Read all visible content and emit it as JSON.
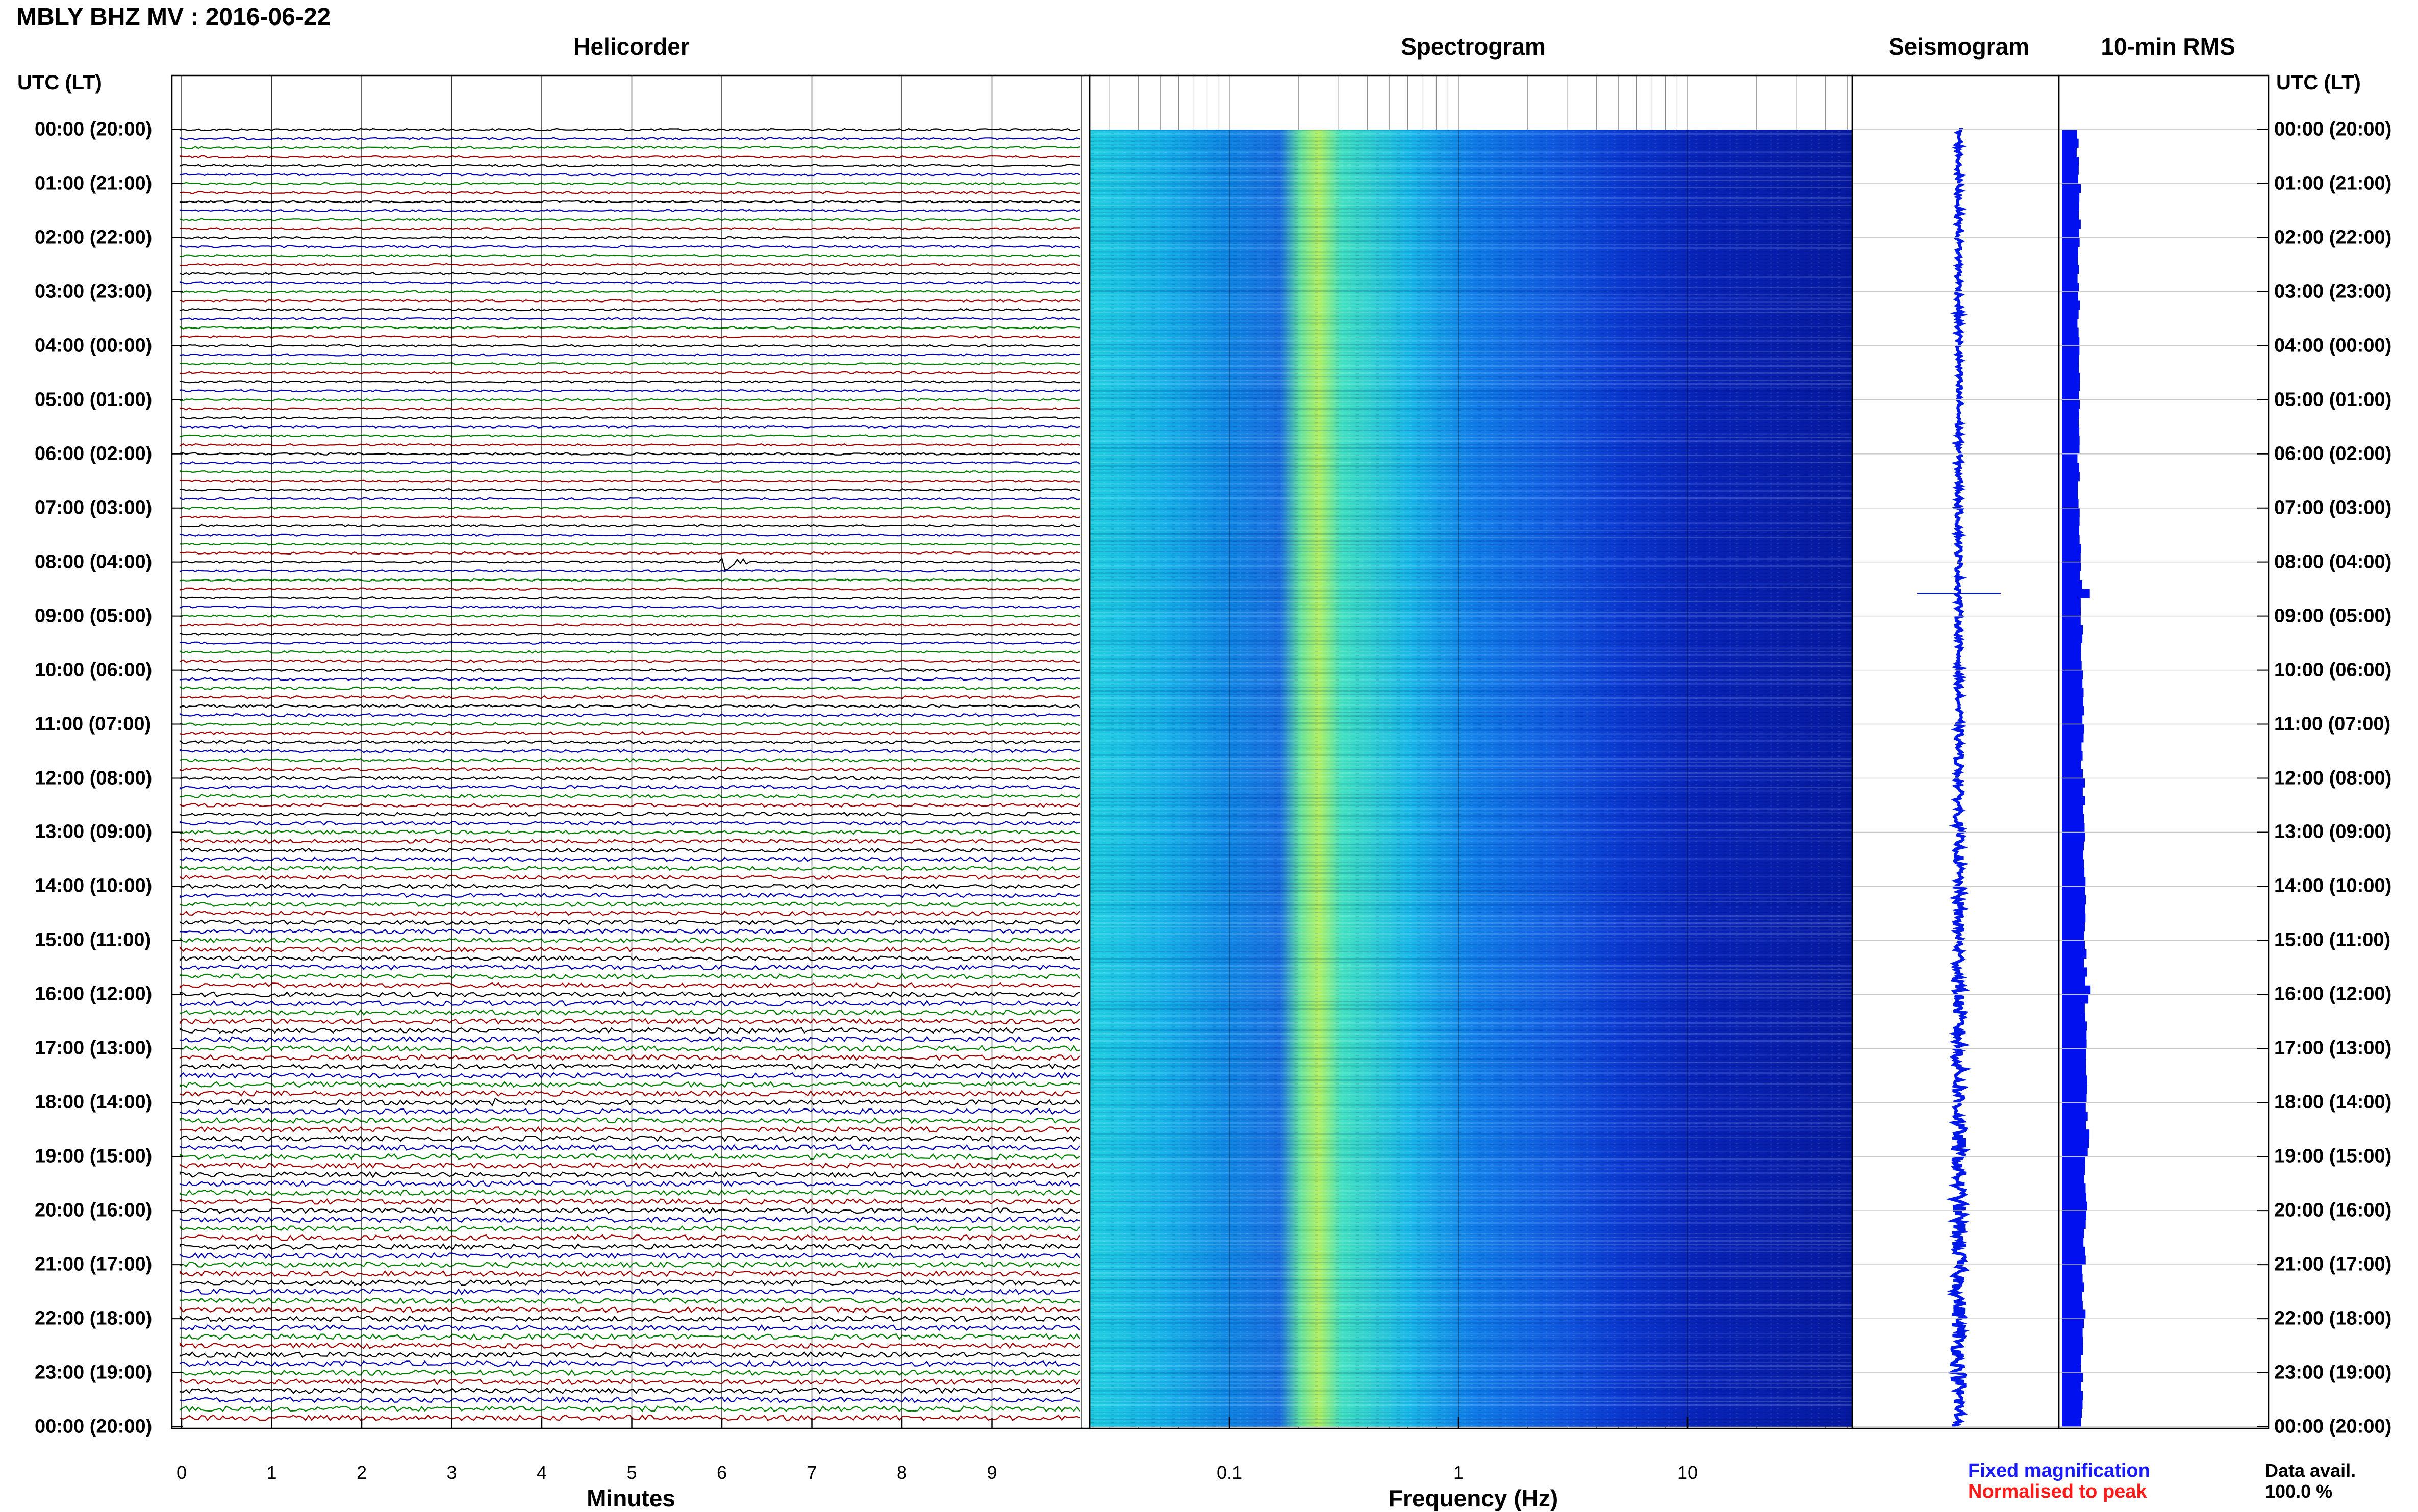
{
  "header": {
    "title": "MBLY BHZ MV : 2016-06-22"
  },
  "panels": {
    "helicorder": "Helicorder",
    "spectrogram": "Spectrogram",
    "seismogram": "Seismogram",
    "rms": "10-min RMS"
  },
  "axis_heading_left": "UTC (LT)",
  "axis_heading_right": "UTC (LT)",
  "hour_labels": [
    "00:00 (20:00)",
    "01:00 (21:00)",
    "02:00 (22:00)",
    "03:00 (23:00)",
    "04:00 (00:00)",
    "05:00 (01:00)",
    "06:00 (02:00)",
    "07:00 (03:00)",
    "08:00 (04:00)",
    "09:00 (05:00)",
    "10:00 (06:00)",
    "11:00 (07:00)",
    "12:00 (08:00)",
    "13:00 (09:00)",
    "14:00 (10:00)",
    "15:00 (11:00)",
    "16:00 (12:00)",
    "17:00 (13:00)",
    "18:00 (14:00)",
    "19:00 (15:00)",
    "20:00 (16:00)",
    "21:00 (17:00)",
    "22:00 (18:00)",
    "23:00 (19:00)",
    "00:00 (20:00)"
  ],
  "helicorder_xticks": [
    "0",
    "1",
    "2",
    "3",
    "4",
    "5",
    "6",
    "7",
    "8",
    "9"
  ],
  "helicorder_xlabel": "Minutes",
  "spectrogram_xticks": [
    "0.1",
    "1",
    "10"
  ],
  "spectrogram_xlabel": "Frequency (Hz)",
  "legend": {
    "fixed": "Fixed magnification",
    "normalised": "Normalised to peak"
  },
  "data_avail": {
    "label": "Data avail.",
    "value": "100.0 %"
  },
  "colors": {
    "trace_cycle": [
      "#000000",
      "#0000b0",
      "#008000",
      "#a00000"
    ],
    "rms_bar": "#0010ee",
    "seismogram": "#0018e8",
    "legend_fixed": "#1a1aff",
    "legend_normalised": "#ff1a1a"
  },
  "chart_data": [
    {
      "type": "line",
      "title": "Helicorder",
      "xlabel": "Minutes",
      "xlim": [
        0,
        10
      ],
      "ylabel": "UTC (LT)",
      "rows_per_hour": 6,
      "events": [
        {
          "time_utc": "08:00",
          "minute": 6.0,
          "amplitude": "large"
        },
        {
          "time_utc": "18:00",
          "minute": 3.4,
          "amplitude": "moderate"
        },
        {
          "time_utc": "00:50",
          "minute": 0.8,
          "amplitude": "small"
        }
      ]
    },
    {
      "type": "heatmap",
      "title": "Spectrogram",
      "xlabel": "Frequency (Hz)",
      "xscale": "log",
      "xlim": [
        0.02,
        50
      ],
      "bands": [
        {
          "fmin": 0.02,
          "fmax": 0.2,
          "level": "moderate"
        },
        {
          "fmin": 0.2,
          "fmax": 0.3,
          "level": "high"
        },
        {
          "fmin": 0.3,
          "fmax": 3,
          "level": "moderate"
        },
        {
          "fmin": 3,
          "fmax": 50,
          "level": "low"
        }
      ]
    },
    {
      "type": "line",
      "title": "Seismogram",
      "events": [
        {
          "time_utc": "08:35",
          "amplitude": "large"
        }
      ]
    },
    {
      "type": "bar",
      "title": "10-min RMS",
      "hourly_relative_level": [
        0.4,
        0.45,
        0.42,
        0.42,
        0.42,
        0.43,
        0.42,
        0.45,
        0.48,
        0.5,
        0.52,
        0.52,
        0.55,
        0.55,
        0.58,
        0.6,
        0.62,
        0.6,
        0.65,
        0.6,
        0.58,
        0.55,
        0.52,
        0.5
      ],
      "peaks": [
        {
          "time_utc": "08:30",
          "relative_level": 0.7
        },
        {
          "time_utc": "15:50",
          "relative_level": 0.72
        }
      ]
    }
  ]
}
